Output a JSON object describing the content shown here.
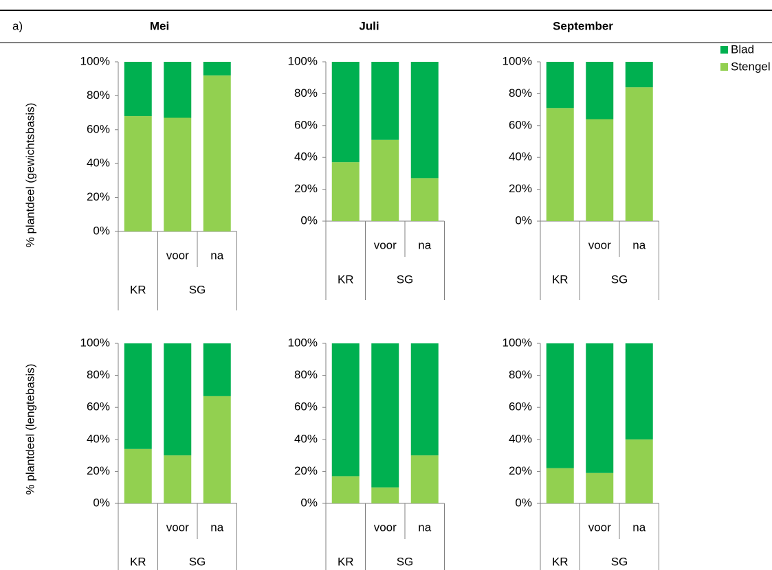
{
  "header": {
    "label": "a)",
    "columns": [
      "Mei",
      "Juli",
      "September"
    ]
  },
  "row_labels": [
    "% plantdeel (gewichtsbasis)",
    "% plantdeel (lengtebasis)"
  ],
  "legend": {
    "position": "right-top",
    "series": [
      {
        "name": "Stengel",
        "color": "#92d050"
      },
      {
        "name": "Blad",
        "color": "#00b050"
      }
    ]
  },
  "chart_data": [
    {
      "type": "bar",
      "stacked": true,
      "categories": [
        null,
        "voor",
        "na"
      ],
      "groups": [
        {
          "label": "KR",
          "span": 1
        },
        {
          "label": "SG",
          "span": 2
        }
      ],
      "series": [
        {
          "values": [
            68,
            67,
            92
          ]
        },
        {
          "values": [
            32,
            33,
            8
          ]
        }
      ],
      "ylim": [
        0,
        100
      ],
      "yticks": [
        {
          "value": 0,
          "label": "0%"
        },
        {
          "value": 20,
          "label": "20%"
        },
        {
          "value": 40,
          "label": "40%"
        },
        {
          "value": 60,
          "label": "60%"
        },
        {
          "value": 80,
          "label": "80%"
        },
        {
          "value": 100,
          "label": "100%"
        }
      ]
    },
    {
      "type": "bar",
      "stacked": true,
      "categories": [
        null,
        "voor",
        "na"
      ],
      "groups": [
        {
          "label": "KR",
          "span": 1
        },
        {
          "label": "SG",
          "span": 2
        }
      ],
      "series": [
        {
          "values": [
            37,
            51,
            27
          ]
        },
        {
          "values": [
            63,
            49,
            73
          ]
        }
      ],
      "ylim": [
        0,
        100
      ],
      "yticks": [
        {
          "value": 0,
          "label": "0%"
        },
        {
          "value": 20,
          "label": "20%"
        },
        {
          "value": 40,
          "label": "40%"
        },
        {
          "value": 60,
          "label": "60%"
        },
        {
          "value": 80,
          "label": "80%"
        },
        {
          "value": 100,
          "label": "100%"
        }
      ]
    },
    {
      "type": "bar",
      "stacked": true,
      "categories": [
        null,
        "voor",
        "na"
      ],
      "groups": [
        {
          "label": "KR",
          "span": 1
        },
        {
          "label": "SG",
          "span": 2
        }
      ],
      "series": [
        {
          "values": [
            71,
            64,
            84
          ]
        },
        {
          "values": [
            29,
            36,
            16
          ]
        }
      ],
      "ylim": [
        0,
        100
      ],
      "yticks": [
        {
          "value": 0,
          "label": "0%"
        },
        {
          "value": 20,
          "label": "20%"
        },
        {
          "value": 40,
          "label": "40%"
        },
        {
          "value": 60,
          "label": "60%"
        },
        {
          "value": 80,
          "label": "80%"
        },
        {
          "value": 100,
          "label": "100%"
        }
      ]
    },
    {
      "type": "bar",
      "stacked": true,
      "categories": [
        null,
        "voor",
        "na"
      ],
      "groups": [
        {
          "label": "KR",
          "span": 1
        },
        {
          "label": "SG",
          "span": 2
        }
      ],
      "series": [
        {
          "values": [
            34,
            30,
            67
          ]
        },
        {
          "values": [
            66,
            70,
            33
          ]
        }
      ],
      "ylim": [
        0,
        100
      ],
      "yticks": [
        {
          "value": 0,
          "label": "0%"
        },
        {
          "value": 20,
          "label": "20%"
        },
        {
          "value": 40,
          "label": "40%"
        },
        {
          "value": 60,
          "label": "60%"
        },
        {
          "value": 80,
          "label": "80%"
        },
        {
          "value": 100,
          "label": "100%"
        }
      ]
    },
    {
      "type": "bar",
      "stacked": true,
      "categories": [
        null,
        "voor",
        "na"
      ],
      "groups": [
        {
          "label": "KR",
          "span": 1
        },
        {
          "label": "SG",
          "span": 2
        }
      ],
      "series": [
        {
          "values": [
            17,
            10,
            30
          ]
        },
        {
          "values": [
            83,
            90,
            70
          ]
        }
      ],
      "ylim": [
        0,
        100
      ],
      "yticks": [
        {
          "value": 0,
          "label": "0%"
        },
        {
          "value": 20,
          "label": "20%"
        },
        {
          "value": 40,
          "label": "40%"
        },
        {
          "value": 60,
          "label": "60%"
        },
        {
          "value": 80,
          "label": "80%"
        },
        {
          "value": 100,
          "label": "100%"
        }
      ]
    },
    {
      "type": "bar",
      "stacked": true,
      "categories": [
        null,
        "voor",
        "na"
      ],
      "groups": [
        {
          "label": "KR",
          "span": 1
        },
        {
          "label": "SG",
          "span": 2
        }
      ],
      "series": [
        {
          "values": [
            22,
            19,
            40
          ]
        },
        {
          "values": [
            78,
            81,
            60
          ]
        }
      ],
      "ylim": [
        0,
        100
      ],
      "yticks": [
        {
          "value": 0,
          "label": "0%"
        },
        {
          "value": 20,
          "label": "20%"
        },
        {
          "value": 40,
          "label": "40%"
        },
        {
          "value": 60,
          "label": "60%"
        },
        {
          "value": 80,
          "label": "80%"
        },
        {
          "value": 100,
          "label": "100%"
        }
      ]
    }
  ]
}
